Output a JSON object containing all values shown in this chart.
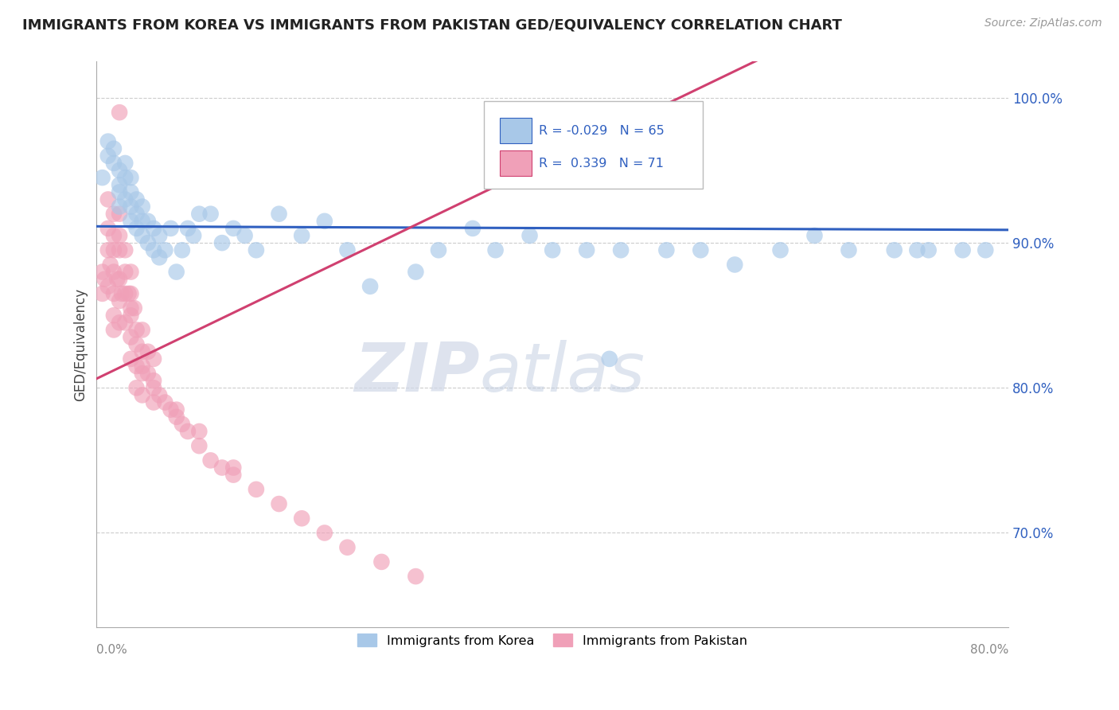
{
  "title": "IMMIGRANTS FROM KOREA VS IMMIGRANTS FROM PAKISTAN GED/EQUIVALENCY CORRELATION CHART",
  "source": "Source: ZipAtlas.com",
  "ylabel": "GED/Equivalency",
  "yticks": [
    "70.0%",
    "80.0%",
    "90.0%",
    "100.0%"
  ],
  "ytick_vals": [
    0.7,
    0.8,
    0.9,
    1.0
  ],
  "xlim": [
    0.0,
    0.8
  ],
  "ylim": [
    0.635,
    1.025
  ],
  "korea_R": "-0.029",
  "korea_N": "65",
  "pakistan_R": "0.339",
  "pakistan_N": "71",
  "korea_color": "#a8c8e8",
  "pakistan_color": "#f0a0b8",
  "korea_line_color": "#3060c0",
  "pakistan_line_color": "#d04070",
  "watermark_zi": "ZIP",
  "watermark_atlas": "atlas",
  "korea_x": [
    0.005,
    0.01,
    0.01,
    0.015,
    0.015,
    0.02,
    0.02,
    0.02,
    0.02,
    0.025,
    0.025,
    0.025,
    0.03,
    0.03,
    0.03,
    0.03,
    0.035,
    0.035,
    0.035,
    0.04,
    0.04,
    0.04,
    0.045,
    0.045,
    0.05,
    0.05,
    0.055,
    0.055,
    0.06,
    0.065,
    0.07,
    0.075,
    0.08,
    0.085,
    0.09,
    0.1,
    0.11,
    0.12,
    0.13,
    0.14,
    0.16,
    0.18,
    0.2,
    0.22,
    0.24,
    0.28,
    0.3,
    0.33,
    0.35,
    0.38,
    0.4,
    0.43,
    0.46,
    0.5,
    0.53,
    0.56,
    0.6,
    0.63,
    0.66,
    0.7,
    0.73,
    0.76,
    0.78,
    0.72,
    0.45
  ],
  "korea_y": [
    0.945,
    0.96,
    0.97,
    0.955,
    0.965,
    0.935,
    0.95,
    0.94,
    0.925,
    0.93,
    0.945,
    0.955,
    0.915,
    0.925,
    0.935,
    0.945,
    0.91,
    0.92,
    0.93,
    0.905,
    0.915,
    0.925,
    0.9,
    0.915,
    0.895,
    0.91,
    0.89,
    0.905,
    0.895,
    0.91,
    0.88,
    0.895,
    0.91,
    0.905,
    0.92,
    0.92,
    0.9,
    0.91,
    0.905,
    0.895,
    0.92,
    0.905,
    0.915,
    0.895,
    0.87,
    0.88,
    0.895,
    0.91,
    0.895,
    0.905,
    0.895,
    0.895,
    0.895,
    0.895,
    0.895,
    0.885,
    0.895,
    0.905,
    0.895,
    0.895,
    0.895,
    0.895,
    0.895,
    0.895,
    0.82
  ],
  "pakistan_x": [
    0.005,
    0.005,
    0.007,
    0.01,
    0.01,
    0.01,
    0.01,
    0.012,
    0.015,
    0.015,
    0.015,
    0.015,
    0.015,
    0.015,
    0.015,
    0.018,
    0.02,
    0.02,
    0.02,
    0.02,
    0.02,
    0.02,
    0.022,
    0.025,
    0.025,
    0.025,
    0.025,
    0.028,
    0.03,
    0.03,
    0.03,
    0.03,
    0.03,
    0.033,
    0.035,
    0.035,
    0.035,
    0.035,
    0.04,
    0.04,
    0.04,
    0.04,
    0.045,
    0.045,
    0.05,
    0.05,
    0.05,
    0.055,
    0.06,
    0.065,
    0.07,
    0.075,
    0.08,
    0.09,
    0.1,
    0.11,
    0.12,
    0.14,
    0.16,
    0.18,
    0.2,
    0.22,
    0.25,
    0.28,
    0.12,
    0.09,
    0.07,
    0.05,
    0.04,
    0.03,
    0.02
  ],
  "pakistan_y": [
    0.88,
    0.865,
    0.875,
    0.93,
    0.91,
    0.895,
    0.87,
    0.885,
    0.92,
    0.905,
    0.895,
    0.88,
    0.865,
    0.85,
    0.84,
    0.875,
    0.92,
    0.905,
    0.895,
    0.875,
    0.86,
    0.845,
    0.865,
    0.895,
    0.88,
    0.865,
    0.845,
    0.865,
    0.88,
    0.865,
    0.85,
    0.835,
    0.82,
    0.855,
    0.84,
    0.83,
    0.815,
    0.8,
    0.84,
    0.825,
    0.81,
    0.795,
    0.825,
    0.81,
    0.82,
    0.805,
    0.79,
    0.795,
    0.79,
    0.785,
    0.78,
    0.775,
    0.77,
    0.76,
    0.75,
    0.745,
    0.74,
    0.73,
    0.72,
    0.71,
    0.7,
    0.69,
    0.68,
    0.67,
    0.745,
    0.77,
    0.785,
    0.8,
    0.815,
    0.855,
    0.99
  ]
}
